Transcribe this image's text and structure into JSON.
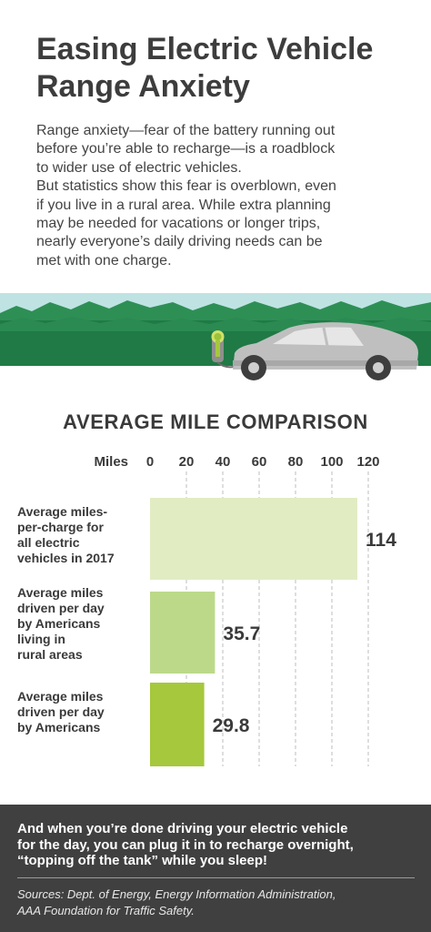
{
  "title_lines": [
    "Easing Electric Vehicle",
    "Range Anxiety"
  ],
  "intro_lines": [
    "Range anxiety—fear of the battery running out",
    "before you’re able to recharge—is a roadblock",
    "to wider use of electric vehicles.",
    "But statistics show this fear is overblown, even",
    "if you live in a rural area. While extra planning",
    "may be needed for vacations or longer trips,",
    "nearly everyone’s daily driving needs can be",
    "met with one charge."
  ],
  "chart_data": {
    "type": "bar",
    "orientation": "horizontal",
    "title": "AVERAGE MILE COMPARISON",
    "xlabel": "Miles",
    "ticks": [
      0,
      20,
      40,
      60,
      80,
      100,
      120
    ],
    "xlim": [
      0,
      120
    ],
    "grid": true,
    "categories": [
      [
        "Average miles-",
        "per-charge for",
        "all electric",
        "vehicles in 2017"
      ],
      [
        "Average miles",
        "driven per day",
        "by Americans",
        "living in",
        "rural areas"
      ],
      [
        "Average miles",
        "driven per day",
        "by Americans"
      ]
    ],
    "values": [
      114,
      35.7,
      29.8
    ],
    "value_labels": [
      "114",
      "35.7",
      "29.8"
    ],
    "colors": [
      "#e1ecc3",
      "#bcd98a",
      "#a5c83c"
    ]
  },
  "colors": {
    "accent_green": "#a5c83c",
    "hills_dark": "#1f7a45",
    "hills_mid": "#2e8f55",
    "footer_bg": "#404040"
  },
  "footer": {
    "lines": [
      "And when you’re done driving your electric vehicle",
      "for the day, you can plug it in to recharge overnight,",
      "“topping off the tank” while you sleep!"
    ],
    "sources_lines": [
      "Sources: Dept. of Energy, Energy Information Administration,",
      "AAA Foundation for Traffic Safety."
    ]
  }
}
